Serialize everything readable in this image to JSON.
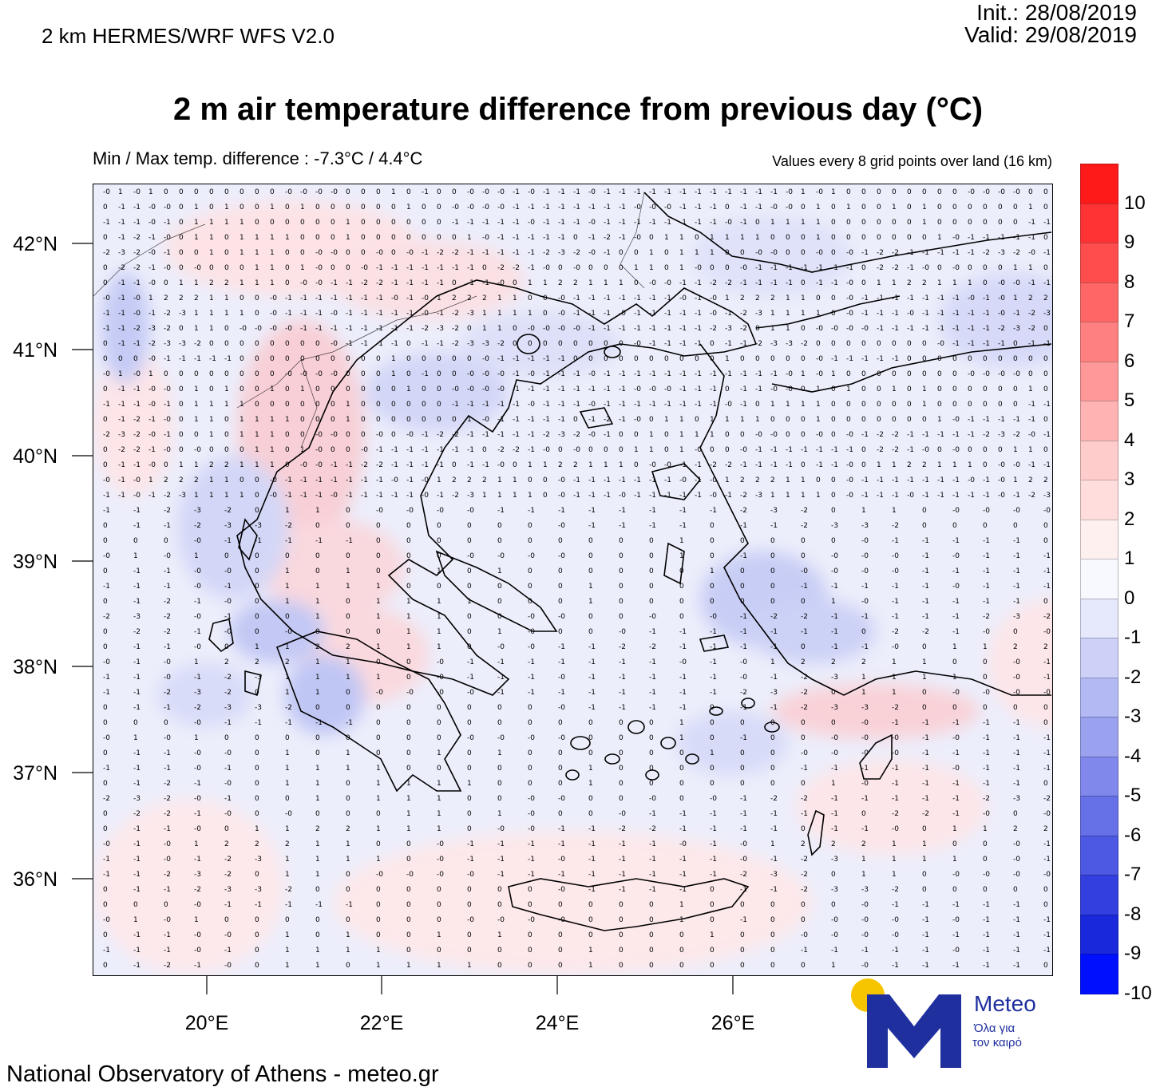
{
  "header": {
    "model": "2 km HERMES/WRF WFS V2.0",
    "init": "Init.:  28/08/2019",
    "valid": "Valid: 29/08/2019",
    "title": "2 m air temperature difference from previous day (°C)",
    "minmax": "Min / Max temp. difference : -7.3°C / 4.4°C",
    "values_note": "Values every 8 grid points over land (16 km)"
  },
  "footer": "National Observatory of Athens - meteo.gr",
  "axes": {
    "lat_labels": [
      "42°N",
      "41°N",
      "40°N",
      "39°N",
      "38°N",
      "37°N",
      "36°N"
    ],
    "lon_labels": [
      "20°E",
      "22°E",
      "24°E",
      "26°E"
    ]
  },
  "colorbar": {
    "labels": [
      "10",
      "9",
      "8",
      "7",
      "6",
      "5",
      "4",
      "3",
      "2",
      "1",
      "0",
      "-1",
      "-2",
      "-3",
      "-4",
      "-5",
      "-6",
      "-7",
      "-8",
      "-9",
      "-10"
    ],
    "colors": [
      "#ff1a1a",
      "#ff3333",
      "#ff4d4d",
      "#ff6666",
      "#ff8080",
      "#ff9999",
      "#ffb3b3",
      "#ffcccc",
      "#ffdddd",
      "#fff0f0",
      "#f8f8ff",
      "#e6e8fb",
      "#cdd1f7",
      "#b3b9f3",
      "#9aa1ef",
      "#8089eb",
      "#6670e7",
      "#4d58e3",
      "#3340df",
      "#1a28db",
      "#0010ff"
    ]
  },
  "logo": {
    "name": "Meteo",
    "sub1": "Όλα για",
    "sub2": "τον καιρό",
    "brand_color": "#1f2f9e",
    "sun_color": "#f7c400"
  },
  "map_data": {
    "field_note_rows": [
      "-0 1 -0 1 0 0 0 0 0 0 0 0 -0 -0 -0 -0 0 0 0 1 0 -1 0 0 -0 -0 -0 -1 -0 -1 -1 -1 -0 -1 -1 -1 -1 -1 -1 -1 -1 -1 -1 -1 -1",
      "0 -1 -1 -0 -0 0 1 0 1 0 0 1 0 1 0 0 0 0 0 0 1 0 0 -0 -0 -0 -0 -1 -1 -1 -1 -1 -1 -1 -1 -0 -0 -0 -1 -1 -1",
      "-1 -1 -1 -0 -1 0 1 1 1 1 0 0 0 0 0 0 1 0 0 0 0 0 0 -1 -1 -1 -1 -1 -0 -1 -1 -1 -0 -1 -1 -1 -1 -1",
      "0 -1 -2 -1 -0 0 1 1 0 1 1 1 1 0 0 0 1 0 0 0 0 0 0 0 1 -0 -1 -1 -1 -1 -1",
      "-2 -3 -2 -0 -1 0 0 1 0 1 1 1 0 0 -0 -0 0 0 -0 0 -0 -1 -2 -2 -1 -1 -1 -1 -1",
      "0 -2 -2 -1 -0 0 -0 0 0 0 1 1 0 1 -0 0 0 -0 -1 -1 -1 -1 -1 -1 -1",
      "0 -1 -1 -0 0 1 1 2 2 1 1 1 0 -0 -0 -1 -1 -2 -2 -1 -1 -1 -1",
      "-0 -1 -0 1 2 2 2 1 1 0 0 -0 -1 -1 -1 -1 -1 -1 -1",
      "-1 -1 -0 -1 -2 -3 1 1 1 1 0 -0 -1 -1 -1 -0 -1 -1 -1",
      "-1 -1 -2 -3 -2 0 1 1 0 -0 -0 -0 -0 -1 -1 -1 -1 -1 -1",
      "0 -1 -1 -2 -3 -3 -2 0 0 0 0 0 0 0 0 -0 -1 -1 -1 -1",
      "0 0 0 -0 -1 -1 -1 -1 -1 0 0 0 0 0 0 0 0 0 0 1 0 0"
    ]
  }
}
